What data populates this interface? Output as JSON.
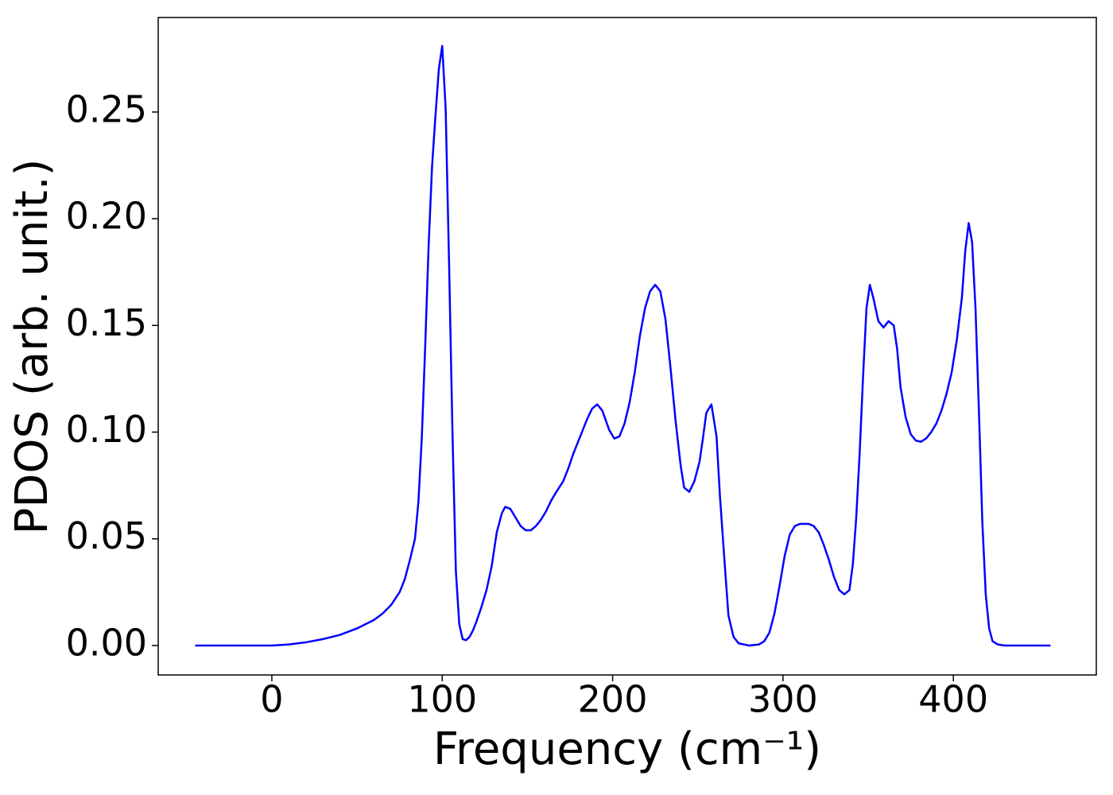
{
  "chart_data": {
    "type": "line",
    "xlabel": "Frequency (cm⁻¹)",
    "ylabel": "PDOS (arb. unit.)",
    "x": [
      -45,
      0,
      10,
      20,
      30,
      40,
      50,
      60,
      65,
      70,
      75,
      78,
      81,
      84,
      86,
      88,
      90,
      92,
      94,
      96,
      98,
      100,
      102,
      104,
      106,
      108,
      110,
      112,
      114,
      116,
      118,
      120,
      123,
      126,
      129,
      132,
      135,
      137,
      140,
      143,
      146,
      149,
      152,
      155,
      158,
      161,
      164,
      167,
      171,
      174,
      177,
      181,
      185,
      188,
      191,
      194,
      198,
      201,
      204,
      207,
      210,
      213,
      216,
      219,
      222,
      225,
      228,
      231,
      234,
      237,
      240,
      242,
      245,
      248,
      251,
      253,
      255,
      258,
      261,
      263,
      266,
      268,
      271,
      274,
      280,
      286,
      289,
      292,
      295,
      298,
      301,
      304,
      307,
      310,
      315,
      318,
      321,
      324,
      327,
      330,
      333,
      336,
      339,
      341,
      343,
      345,
      347,
      349,
      351,
      353,
      356,
      359,
      362,
      365,
      367,
      369,
      372,
      375,
      378,
      381,
      384,
      387,
      390,
      393,
      396,
      399,
      402,
      405,
      407,
      409,
      411,
      413,
      415,
      417,
      419,
      421,
      423,
      426,
      430,
      457
    ],
    "series": [
      {
        "color": "#0000ff",
        "values": [
          0,
          0,
          0.0005,
          0.0015,
          0.003,
          0.005,
          0.008,
          0.012,
          0.015,
          0.019,
          0.025,
          0.031,
          0.04,
          0.05,
          0.067,
          0.097,
          0.14,
          0.187,
          0.224,
          0.248,
          0.27,
          0.281,
          0.252,
          0.18,
          0.1,
          0.035,
          0.01,
          0.003,
          0.0025,
          0.004,
          0.007,
          0.011,
          0.018,
          0.026,
          0.037,
          0.053,
          0.062,
          0.065,
          0.064,
          0.06,
          0.056,
          0.054,
          0.054,
          0.056,
          0.059,
          0.063,
          0.068,
          0.072,
          0.077,
          0.083,
          0.09,
          0.098,
          0.106,
          0.111,
          0.113,
          0.11,
          0.101,
          0.097,
          0.098,
          0.104,
          0.114,
          0.128,
          0.145,
          0.158,
          0.166,
          0.169,
          0.166,
          0.153,
          0.13,
          0.105,
          0.084,
          0.074,
          0.072,
          0.077,
          0.086,
          0.097,
          0.109,
          0.113,
          0.098,
          0.07,
          0.036,
          0.014,
          0.004,
          0.001,
          0,
          0.0005,
          0.002,
          0.006,
          0.015,
          0.028,
          0.042,
          0.052,
          0.056,
          0.057,
          0.057,
          0.056,
          0.053,
          0.047,
          0.04,
          0.032,
          0.026,
          0.024,
          0.026,
          0.038,
          0.06,
          0.09,
          0.126,
          0.158,
          0.169,
          0.163,
          0.152,
          0.149,
          0.152,
          0.15,
          0.139,
          0.121,
          0.107,
          0.099,
          0.096,
          0.0955,
          0.097,
          0.1,
          0.104,
          0.11,
          0.118,
          0.128,
          0.143,
          0.163,
          0.185,
          0.198,
          0.189,
          0.158,
          0.11,
          0.058,
          0.024,
          0.008,
          0.002,
          0.0005,
          0,
          0
        ]
      }
    ],
    "xlim": [
      -66.7,
      483.9
    ],
    "ylim": [
      -0.0138,
      0.2943
    ],
    "xticks": [
      0,
      100,
      200,
      300,
      400
    ],
    "yticks": [
      {
        "value": 0,
        "label": "0.00"
      },
      0.05,
      {
        "value": 0.1,
        "label": "0.10"
      },
      0.15,
      {
        "value": 0.2,
        "label": "0.20"
      },
      0.25
    ]
  }
}
